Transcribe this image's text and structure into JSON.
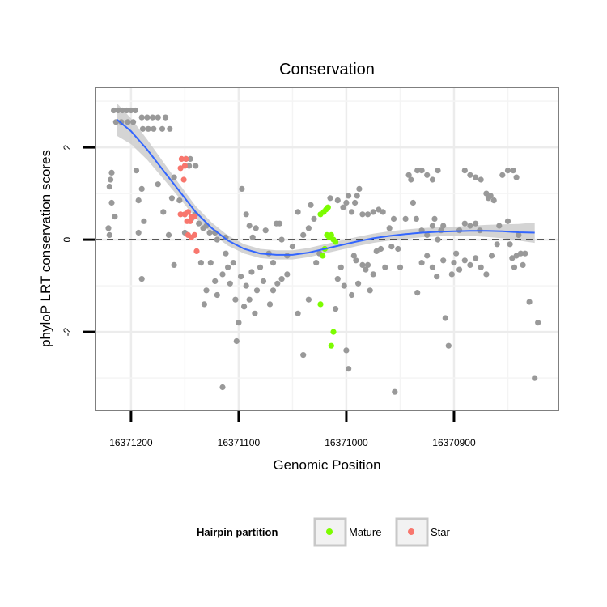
{
  "chart_data": {
    "type": "scatter",
    "title": "Conservation",
    "xlabel": "Genomic Position",
    "ylabel": "phyloP LRT conservation scores",
    "x_reversed": true,
    "xlim": [
      16371233,
      16370803
    ],
    "ylim": [
      -3.7,
      3.3
    ],
    "x_ticks": [
      16371200,
      16371100,
      16371000,
      16370900
    ],
    "x_tick_labels": [
      "16371200",
      "16371100",
      "16371000",
      "16370900"
    ],
    "y_ticks": [
      -2,
      0,
      2
    ],
    "y_tick_labels": [
      "-2",
      "0",
      "2"
    ],
    "grid": true,
    "reference_line": {
      "y": 0,
      "style": "dashed"
    },
    "legend": {
      "title": "Hairpin partition",
      "placement": "bottom",
      "entries": [
        {
          "label": "Mature",
          "color": "#7CFC00"
        },
        {
          "label": "Star",
          "color": "#F8766D"
        }
      ]
    },
    "colors": {
      "other": "#999999",
      "mature": "#7CFC00",
      "star": "#F8766D",
      "smooth": "#3366FF",
      "ribbon": "#CCCCCC"
    },
    "series": [
      {
        "group": "other",
        "points": [
          [
            16371216,
            2.8
          ],
          [
            16371212,
            2.8
          ],
          [
            16371208,
            2.8
          ],
          [
            16371204,
            2.8
          ],
          [
            16371200,
            2.8
          ],
          [
            16371196,
            2.8
          ],
          [
            16371214,
            2.55
          ],
          [
            16371209,
            2.55
          ],
          [
            16371203,
            2.55
          ],
          [
            16371198,
            2.55
          ],
          [
            16371190,
            2.65
          ],
          [
            16371185,
            2.65
          ],
          [
            16371180,
            2.65
          ],
          [
            16371175,
            2.65
          ],
          [
            16371168,
            2.65
          ],
          [
            16371189,
            2.4
          ],
          [
            16371184,
            2.4
          ],
          [
            16371179,
            2.4
          ],
          [
            16371171,
            2.4
          ],
          [
            16371164,
            2.4
          ],
          [
            16371149,
            1.75
          ],
          [
            16371145,
            1.75
          ],
          [
            16371146,
            1.6
          ],
          [
            16371140,
            1.6
          ],
          [
            16371218,
            1.45
          ],
          [
            16371219,
            1.3
          ],
          [
            16371220,
            1.15
          ],
          [
            16371218,
            0.8
          ],
          [
            16371215,
            0.5
          ],
          [
            16371221,
            0.25
          ],
          [
            16371220,
            0.1
          ],
          [
            16371195,
            1.5
          ],
          [
            16371190,
            1.1
          ],
          [
            16371193,
            0.85
          ],
          [
            16371188,
            0.4
          ],
          [
            16371190,
            -0.85
          ],
          [
            16371193,
            0.15
          ],
          [
            16371175,
            1.2
          ],
          [
            16371170,
            0.6
          ],
          [
            16371160,
            1.35
          ],
          [
            16371162,
            0.9
          ],
          [
            16371155,
            0.85
          ],
          [
            16371150,
            0.55
          ],
          [
            16371144,
            0.45
          ],
          [
            16371140,
            0.55
          ],
          [
            16371137,
            0.35
          ],
          [
            16371133,
            0.25
          ],
          [
            16371130,
            0.3
          ],
          [
            16371127,
            0.15
          ],
          [
            16371122,
            0.15
          ],
          [
            16371120,
            0.0
          ],
          [
            16371112,
            0.05
          ],
          [
            16371150,
            0.15
          ],
          [
            16371165,
            0.1
          ],
          [
            16371160,
            -0.55
          ],
          [
            16371135,
            -0.5
          ],
          [
            16371132,
            -1.4
          ],
          [
            16371130,
            -1.1
          ],
          [
            16371126,
            -0.5
          ],
          [
            16371122,
            -0.9
          ],
          [
            16371120,
            -1.2
          ],
          [
            16371115,
            -0.75
          ],
          [
            16371112,
            -0.3
          ],
          [
            16371110,
            -0.6
          ],
          [
            16371108,
            -0.95
          ],
          [
            16371105,
            -0.5
          ],
          [
            16371103,
            -1.3
          ],
          [
            16371100,
            -1.8
          ],
          [
            16371102,
            -2.2
          ],
          [
            16371115,
            -3.2
          ],
          [
            16371098,
            -0.8
          ],
          [
            16371095,
            -1.45
          ],
          [
            16371093,
            -1.0
          ],
          [
            16371090,
            -1.3
          ],
          [
            16371088,
            -0.7
          ],
          [
            16371085,
            -1.6
          ],
          [
            16371083,
            -1.1
          ],
          [
            16371097,
            1.1
          ],
          [
            16371093,
            0.55
          ],
          [
            16371090,
            0.3
          ],
          [
            16371087,
            0.05
          ],
          [
            16371084,
            0.25
          ],
          [
            16371080,
            -0.6
          ],
          [
            16371077,
            -0.9
          ],
          [
            16371075,
            0.2
          ],
          [
            16371072,
            -0.3
          ],
          [
            16371068,
            -0.5
          ],
          [
            16371065,
            0.35
          ],
          [
            16371062,
            0.35
          ],
          [
            16371060,
            0.0
          ],
          [
            16371055,
            -0.35
          ],
          [
            16371050,
            -0.15
          ],
          [
            16371045,
            -1.6
          ],
          [
            16371055,
            -0.75
          ],
          [
            16371060,
            -0.85
          ],
          [
            16371064,
            -0.95
          ],
          [
            16371068,
            -1.1
          ],
          [
            16371071,
            -1.4
          ],
          [
            16371040,
            -2.5
          ],
          [
            16371045,
            0.6
          ],
          [
            16371040,
            0.1
          ],
          [
            16371035,
            0.25
          ],
          [
            16371033,
            0.75
          ],
          [
            16371030,
            0.45
          ],
          [
            16371028,
            -0.5
          ],
          [
            16371035,
            -1.3
          ],
          [
            16371025,
            -0.3
          ],
          [
            16371010,
            -1.5
          ],
          [
            16371008,
            -0.85
          ],
          [
            16371005,
            -0.6
          ],
          [
            16371002,
            -1.0
          ],
          [
            16371000,
            -2.4
          ],
          [
            16370998,
            -2.8
          ],
          [
            16370995,
            -1.2
          ],
          [
            16370993,
            -0.35
          ],
          [
            16370991,
            -0.45
          ],
          [
            16370989,
            -0.95
          ],
          [
            16370985,
            -0.55
          ],
          [
            16370982,
            -0.65
          ],
          [
            16370980,
            -0.55
          ],
          [
            16370978,
            -1.1
          ],
          [
            16370975,
            -0.75
          ],
          [
            16370972,
            -0.25
          ],
          [
            16370968,
            -0.2
          ],
          [
            16370964,
            -0.6
          ],
          [
            16370985,
            0.55
          ],
          [
            16370988,
            1.1
          ],
          [
            16370992,
            0.8
          ],
          [
            16370995,
            0.6
          ],
          [
            16371000,
            0.8
          ],
          [
            16371003,
            0.7
          ],
          [
            16371008,
            0.85
          ],
          [
            16371015,
            0.9
          ],
          [
            16370998,
            0.95
          ],
          [
            16370990,
            0.95
          ],
          [
            16370980,
            0.55
          ],
          [
            16370975,
            0.6
          ],
          [
            16370970,
            0.65
          ],
          [
            16370966,
            0.6
          ],
          [
            16370960,
            0.25
          ],
          [
            16370958,
            -0.15
          ],
          [
            16370956,
            0.45
          ],
          [
            16370952,
            -0.2
          ],
          [
            16370950,
            -0.6
          ],
          [
            16370955,
            -3.3
          ],
          [
            16370945,
            0.45
          ],
          [
            16370942,
            1.4
          ],
          [
            16370940,
            1.3
          ],
          [
            16370938,
            0.8
          ],
          [
            16370934,
            1.5
          ],
          [
            16370930,
            1.5
          ],
          [
            16370925,
            1.4
          ],
          [
            16370920,
            1.3
          ],
          [
            16370915,
            1.5
          ],
          [
            16370935,
            0.45
          ],
          [
            16370930,
            0.2
          ],
          [
            16370925,
            0.1
          ],
          [
            16370920,
            0.3
          ],
          [
            16370918,
            0.45
          ],
          [
            16370915,
            0.0
          ],
          [
            16370912,
            0.2
          ],
          [
            16370910,
            0.3
          ],
          [
            16370934,
            -1.15
          ],
          [
            16370930,
            -0.5
          ],
          [
            16370925,
            -0.35
          ],
          [
            16370920,
            -0.6
          ],
          [
            16370916,
            -0.8
          ],
          [
            16370910,
            -0.45
          ],
          [
            16370908,
            -1.7
          ],
          [
            16370905,
            -2.3
          ],
          [
            16370902,
            -0.75
          ],
          [
            16370900,
            -0.5
          ],
          [
            16370898,
            -0.3
          ],
          [
            16370895,
            0.2
          ],
          [
            16370890,
            0.35
          ],
          [
            16370885,
            0.3
          ],
          [
            16370880,
            0.35
          ],
          [
            16370876,
            0.2
          ],
          [
            16370890,
            1.5
          ],
          [
            16370885,
            1.4
          ],
          [
            16370880,
            1.35
          ],
          [
            16370875,
            1.3
          ],
          [
            16370870,
            1.0
          ],
          [
            16370868,
            0.9
          ],
          [
            16370866,
            0.95
          ],
          [
            16370863,
            0.85
          ],
          [
            16370895,
            -0.65
          ],
          [
            16370890,
            -0.45
          ],
          [
            16370885,
            -0.55
          ],
          [
            16370880,
            -0.4
          ],
          [
            16370875,
            -0.6
          ],
          [
            16370870,
            -0.75
          ],
          [
            16370865,
            -0.35
          ],
          [
            16370860,
            -0.1
          ],
          [
            16370858,
            0.3
          ],
          [
            16370855,
            1.4
          ],
          [
            16370850,
            1.5
          ],
          [
            16370845,
            1.5
          ],
          [
            16370842,
            1.35
          ],
          [
            16370850,
            0.4
          ],
          [
            16370848,
            -0.1
          ],
          [
            16370846,
            -0.4
          ],
          [
            16370844,
            -0.6
          ],
          [
            16370842,
            -0.35
          ],
          [
            16370840,
            0.1
          ],
          [
            16370838,
            -0.3
          ],
          [
            16370836,
            -0.55
          ],
          [
            16370834,
            -0.3
          ],
          [
            16370830,
            -1.35
          ],
          [
            16370825,
            -3.0
          ],
          [
            16370822,
            -1.8
          ]
        ]
      },
      {
        "group": "mature",
        "points": [
          [
            16371024,
            0.55
          ],
          [
            16371021,
            0.6
          ],
          [
            16371019,
            0.65
          ],
          [
            16371017,
            0.7
          ],
          [
            16371018,
            0.1
          ],
          [
            16371016,
            0.05
          ],
          [
            16371014,
            0.1
          ],
          [
            16371012,
            0.0
          ],
          [
            16371010,
            -0.05
          ],
          [
            16371020,
            -0.2
          ],
          [
            16371022,
            -0.35
          ],
          [
            16371024,
            -1.4
          ],
          [
            16371012,
            -2.0
          ],
          [
            16371014,
            -2.3
          ]
        ]
      },
      {
        "group": "star",
        "points": [
          [
            16371153,
            1.75
          ],
          [
            16371149,
            1.75
          ],
          [
            16371154,
            1.55
          ],
          [
            16371150,
            1.6
          ],
          [
            16371151,
            1.3
          ],
          [
            16371154,
            0.55
          ],
          [
            16371150,
            0.55
          ],
          [
            16371147,
            0.6
          ],
          [
            16371144,
            0.5
          ],
          [
            16371141,
            0.5
          ],
          [
            16371148,
            0.4
          ],
          [
            16371145,
            0.4
          ],
          [
            16371147,
            0.1
          ],
          [
            16371144,
            0.05
          ],
          [
            16371141,
            0.1
          ],
          [
            16371139,
            -0.25
          ]
        ]
      }
    ],
    "smooth": [
      [
        16371213,
        2.6
      ],
      [
        16371200,
        2.35
      ],
      [
        16371185,
        1.95
      ],
      [
        16371170,
        1.5
      ],
      [
        16371155,
        1.05
      ],
      [
        16371140,
        0.6
      ],
      [
        16371125,
        0.25
      ],
      [
        16371110,
        -0.02
      ],
      [
        16371095,
        -0.2
      ],
      [
        16371080,
        -0.3
      ],
      [
        16371065,
        -0.33
      ],
      [
        16371050,
        -0.33
      ],
      [
        16371035,
        -0.28
      ],
      [
        16371020,
        -0.2
      ],
      [
        16371005,
        -0.12
      ],
      [
        16370990,
        -0.04
      ],
      [
        16370975,
        0.03
      ],
      [
        16370960,
        0.08
      ],
      [
        16370945,
        0.12
      ],
      [
        16370930,
        0.15
      ],
      [
        16370915,
        0.17
      ],
      [
        16370900,
        0.18
      ],
      [
        16370885,
        0.19
      ],
      [
        16370870,
        0.19
      ],
      [
        16370855,
        0.18
      ],
      [
        16370840,
        0.16
      ],
      [
        16370825,
        0.15
      ]
    ],
    "smooth_se": [
      0.35,
      0.28,
      0.22,
      0.18,
      0.15,
      0.13,
      0.12,
      0.11,
      0.1,
      0.1,
      0.1,
      0.1,
      0.1,
      0.1,
      0.1,
      0.1,
      0.1,
      0.1,
      0.1,
      0.1,
      0.1,
      0.1,
      0.11,
      0.13,
      0.15,
      0.18,
      0.22
    ]
  }
}
